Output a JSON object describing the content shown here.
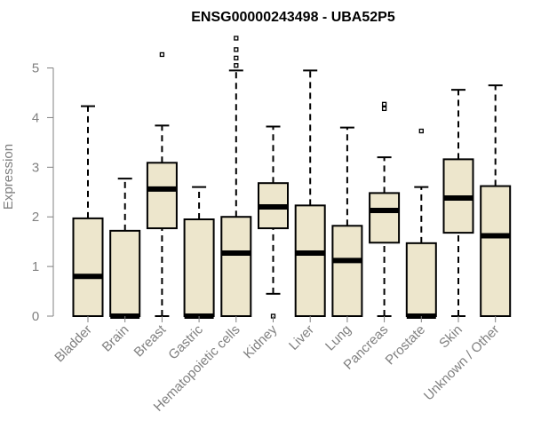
{
  "chart_data": {
    "type": "boxplot",
    "title": "ENSG00000243498 - UBA52P5",
    "xlabel": "",
    "ylabel": "Expression",
    "ylim": [
      0,
      5.6
    ],
    "yticks": [
      0,
      1,
      2,
      3,
      4,
      5
    ],
    "colors": {
      "box_fill": "#ede6cc",
      "stroke": "#000000",
      "axis": "#808080",
      "label": "#808080"
    },
    "categories": [
      "Bladder",
      "Brain",
      "Breast",
      "Gastric",
      "Hematopoietic cells",
      "Kidney",
      "Liver",
      "Lung",
      "Pancreas",
      "Prostate",
      "Skin",
      "Unknown / Other"
    ],
    "boxes": [
      {
        "name": "Bladder",
        "min": 0,
        "q1": 0,
        "median": 0.8,
        "q3": 1.97,
        "max": 4.23,
        "outliers": []
      },
      {
        "name": "Brain",
        "min": 0,
        "q1": 0,
        "median": 0,
        "q3": 1.72,
        "max": 2.77,
        "outliers": []
      },
      {
        "name": "Breast",
        "min": 0,
        "q1": 1.77,
        "median": 2.56,
        "q3": 3.09,
        "max": 3.84,
        "outliers": [
          5.27
        ]
      },
      {
        "name": "Gastric",
        "min": 0,
        "q1": 0,
        "median": 0,
        "q3": 1.95,
        "max": 2.6,
        "outliers": []
      },
      {
        "name": "Hematopoietic cells",
        "min": 0,
        "q1": 0,
        "median": 1.27,
        "q3": 2.0,
        "max": 4.95,
        "outliers": [
          5.05,
          5.2,
          5.37,
          5.6
        ]
      },
      {
        "name": "Kidney",
        "min": 0.45,
        "q1": 1.77,
        "median": 2.2,
        "q3": 2.68,
        "max": 3.82,
        "outliers": [
          0
        ]
      },
      {
        "name": "Liver",
        "min": 0,
        "q1": 0,
        "median": 1.27,
        "q3": 2.23,
        "max": 4.95,
        "outliers": []
      },
      {
        "name": "Lung",
        "min": 0,
        "q1": 0,
        "median": 1.12,
        "q3": 1.82,
        "max": 3.8,
        "outliers": []
      },
      {
        "name": "Pancreas",
        "min": 0,
        "q1": 1.48,
        "median": 2.13,
        "q3": 2.48,
        "max": 3.2,
        "outliers": [
          4.18,
          4.27
        ]
      },
      {
        "name": "Prostate",
        "min": 0,
        "q1": 0,
        "median": 0,
        "q3": 1.47,
        "max": 2.6,
        "outliers": [
          3.73
        ]
      },
      {
        "name": "Skin",
        "min": 0,
        "q1": 1.68,
        "median": 2.38,
        "q3": 3.16,
        "max": 4.56,
        "outliers": []
      },
      {
        "name": "Unknown / Other",
        "min": 0,
        "q1": 0,
        "median": 1.62,
        "q3": 2.62,
        "max": 4.65,
        "outliers": []
      }
    ]
  }
}
